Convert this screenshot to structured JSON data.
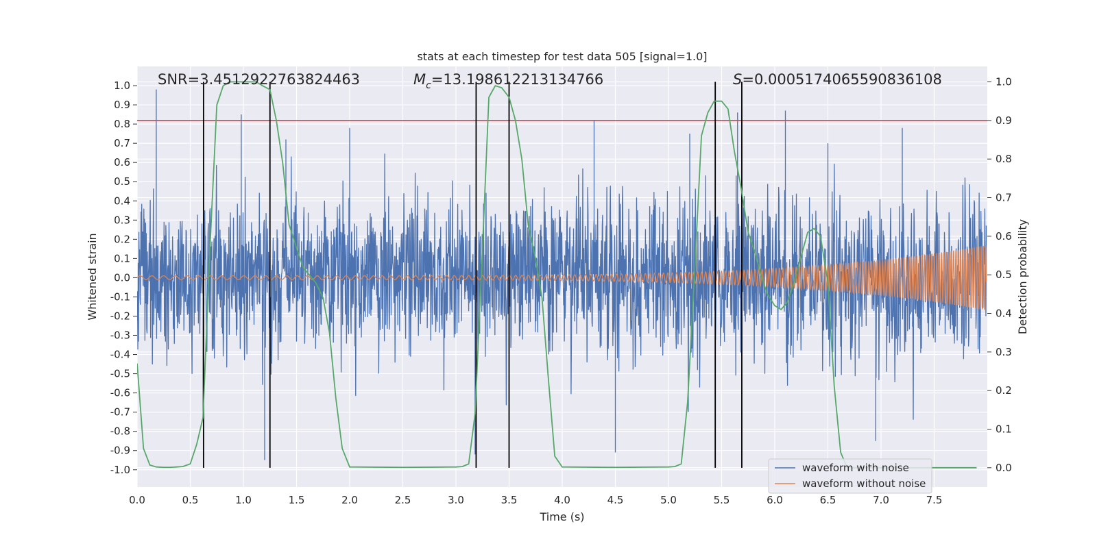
{
  "chart_data": {
    "type": "line",
    "title": "stats at each timestep for test data 505 [signal=1.0]",
    "xlabel": "Time (s)",
    "ylabel": "Whitened strain",
    "y2label": "Detection probability",
    "xlim": [
      0.0,
      8.0
    ],
    "ylim": [
      -1.09,
      1.1
    ],
    "y2lim": [
      -0.05,
      1.04
    ],
    "xticks": [
      "0.0",
      "0.5",
      "1.0",
      "1.5",
      "2.0",
      "2.5",
      "3.0",
      "3.5",
      "4.0",
      "4.5",
      "5.0",
      "5.5",
      "6.0",
      "6.5",
      "7.0",
      "7.5"
    ],
    "yticks": [
      "1.0",
      "0.9",
      "0.8",
      "0.7",
      "0.6",
      "0.5",
      "0.4",
      "0.3",
      "0.2",
      "0.1",
      "0.0",
      "-0.1",
      "-0.2",
      "-0.3",
      "-0.4",
      "-0.5",
      "-0.6",
      "-0.7",
      "-0.8",
      "-0.9",
      "-1.0"
    ],
    "y2ticks": [
      "1.0",
      "0.9",
      "0.8",
      "0.7",
      "0.6",
      "0.5",
      "0.4",
      "0.3",
      "0.2",
      "0.1",
      "0.0"
    ],
    "annotations": {
      "snr": "SNR=3.4512922763824463",
      "mc_symbol": "M",
      "mc_sub": "c",
      "mc_value": "=13.198612213134766",
      "s_symbol": "S",
      "s_value": "=0.0005174065590836108"
    },
    "threshold": {
      "value": 0.9,
      "axis": "right",
      "color": "#c44e52"
    },
    "detection_intervals": [
      [
        0.625,
        1.25
      ],
      [
        3.19,
        3.5
      ],
      [
        5.44,
        5.69
      ]
    ],
    "colors": {
      "noise": "#4c72b0",
      "clean": "#dd8452",
      "prob": "#55a868",
      "vlines": "#000000",
      "background": "#eaeaf2",
      "grid": "#ffffff"
    },
    "series": [
      {
        "name": "waveform with noise",
        "kind": "noisy strain",
        "approx_range": [
          -0.96,
          0.98
        ],
        "peak_points": {
          "t": [
            0.18,
            0.62,
            0.98,
            1.2,
            1.4,
            2.0,
            3.18,
            4.3,
            4.5,
            5.2,
            5.65,
            6.1,
            6.5,
            6.95,
            7.2
          ],
          "y": [
            0.98,
            -0.7,
            0.85,
            -0.95,
            0.72,
            0.78,
            -0.92,
            0.82,
            -0.91,
            0.75,
            0.86,
            0.87,
            0.7,
            -0.85,
            0.78
          ]
        }
      },
      {
        "name": "waveform without noise",
        "kind": "chirp",
        "amplitude_start": 0.01,
        "amplitude_end": 0.17,
        "frequency_start_hz": 9,
        "frequency_end_hz": 48
      },
      {
        "name": "detection probability",
        "axis": "right",
        "t": [
          0.0,
          0.06,
          0.12,
          0.18,
          0.25,
          0.31,
          0.37,
          0.43,
          0.5,
          0.56,
          0.62,
          0.68,
          0.75,
          0.81,
          0.87,
          0.93,
          1.0,
          1.06,
          1.12,
          1.18,
          1.25,
          1.31,
          1.37,
          1.43,
          1.5,
          1.56,
          1.62,
          1.68,
          1.75,
          1.81,
          1.87,
          1.93,
          2.0,
          2.5,
          3.0,
          3.06,
          3.12,
          3.18,
          3.25,
          3.31,
          3.37,
          3.43,
          3.5,
          3.56,
          3.62,
          3.68,
          3.75,
          3.81,
          3.87,
          3.93,
          4.0,
          4.5,
          5.0,
          5.06,
          5.12,
          5.18,
          5.25,
          5.31,
          5.37,
          5.43,
          5.5,
          5.56,
          5.62,
          5.68,
          5.75,
          5.81,
          5.87,
          5.93,
          6.0,
          6.06,
          6.12,
          6.18,
          6.25,
          6.31,
          6.37,
          6.43,
          6.5,
          6.56,
          6.62,
          6.68,
          6.75,
          6.81,
          6.87,
          6.93,
          7.0,
          7.5,
          7.9
        ],
        "values": [
          0.27,
          0.05,
          0.007,
          0.002,
          0.001,
          0.001,
          0.002,
          0.003,
          0.01,
          0.06,
          0.13,
          0.54,
          0.94,
          0.99,
          1.0,
          1.0,
          1.0,
          1.0,
          1.0,
          0.99,
          0.98,
          0.9,
          0.79,
          0.63,
          0.57,
          0.52,
          0.5,
          0.48,
          0.44,
          0.35,
          0.18,
          0.05,
          0.002,
          0.001,
          0.002,
          0.003,
          0.01,
          0.14,
          0.57,
          0.96,
          0.99,
          0.985,
          0.96,
          0.9,
          0.8,
          0.63,
          0.54,
          0.44,
          0.23,
          0.03,
          0.002,
          0.001,
          0.002,
          0.003,
          0.01,
          0.17,
          0.53,
          0.86,
          0.92,
          0.95,
          0.95,
          0.93,
          0.82,
          0.73,
          0.61,
          0.56,
          0.5,
          0.45,
          0.42,
          0.41,
          0.43,
          0.48,
          0.55,
          0.61,
          0.62,
          0.6,
          0.48,
          0.21,
          0.04,
          0.001,
          0.0,
          0.0,
          0.0,
          0.0,
          0.0,
          0.0,
          0.0
        ]
      }
    ],
    "legend": {
      "position": "lower-right",
      "entries": [
        "waveform with noise",
        "waveform without noise"
      ]
    }
  }
}
